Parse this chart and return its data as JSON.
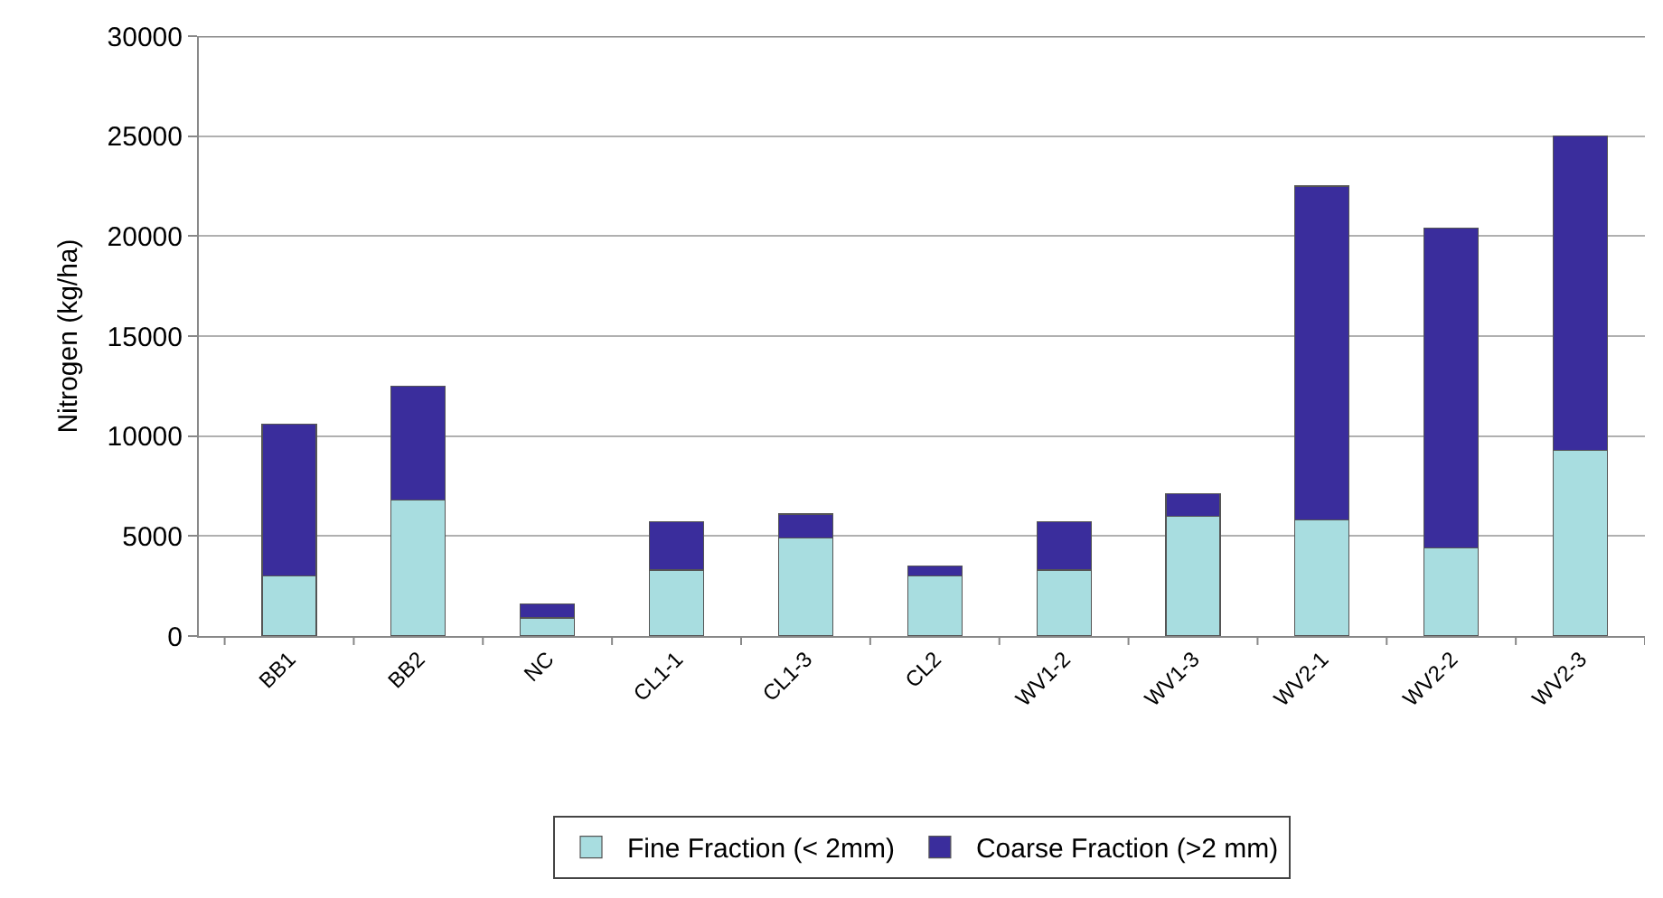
{
  "chart_data": {
    "type": "bar",
    "stacked": true,
    "ylabel": "Nitrogen (kg/ha)",
    "categories": [
      "BB1",
      "BB2",
      "NC",
      "CL1-1",
      "CL1-3",
      "CL2",
      "WV1-2",
      "WV1-3",
      "WV2-1",
      "WV2-2",
      "WV2-3"
    ],
    "series": [
      {
        "name": "Fine Fraction (< 2mm)",
        "color": "#a8dde0",
        "values": [
          3000,
          6800,
          900,
          3300,
          4900,
          3000,
          3300,
          6000,
          5800,
          4400,
          9300
        ]
      },
      {
        "name": "Coarse Fraction (>2 mm)",
        "color": "#3a2d9c",
        "values": [
          7600,
          5700,
          700,
          2400,
          1200,
          500,
          2400,
          1100,
          16700,
          16000,
          15700
        ]
      }
    ],
    "ylim": [
      0,
      30000
    ],
    "yticks": [
      0,
      5000,
      10000,
      15000,
      20000,
      25000,
      30000
    ],
    "grid": "y",
    "legend": "bottom"
  }
}
